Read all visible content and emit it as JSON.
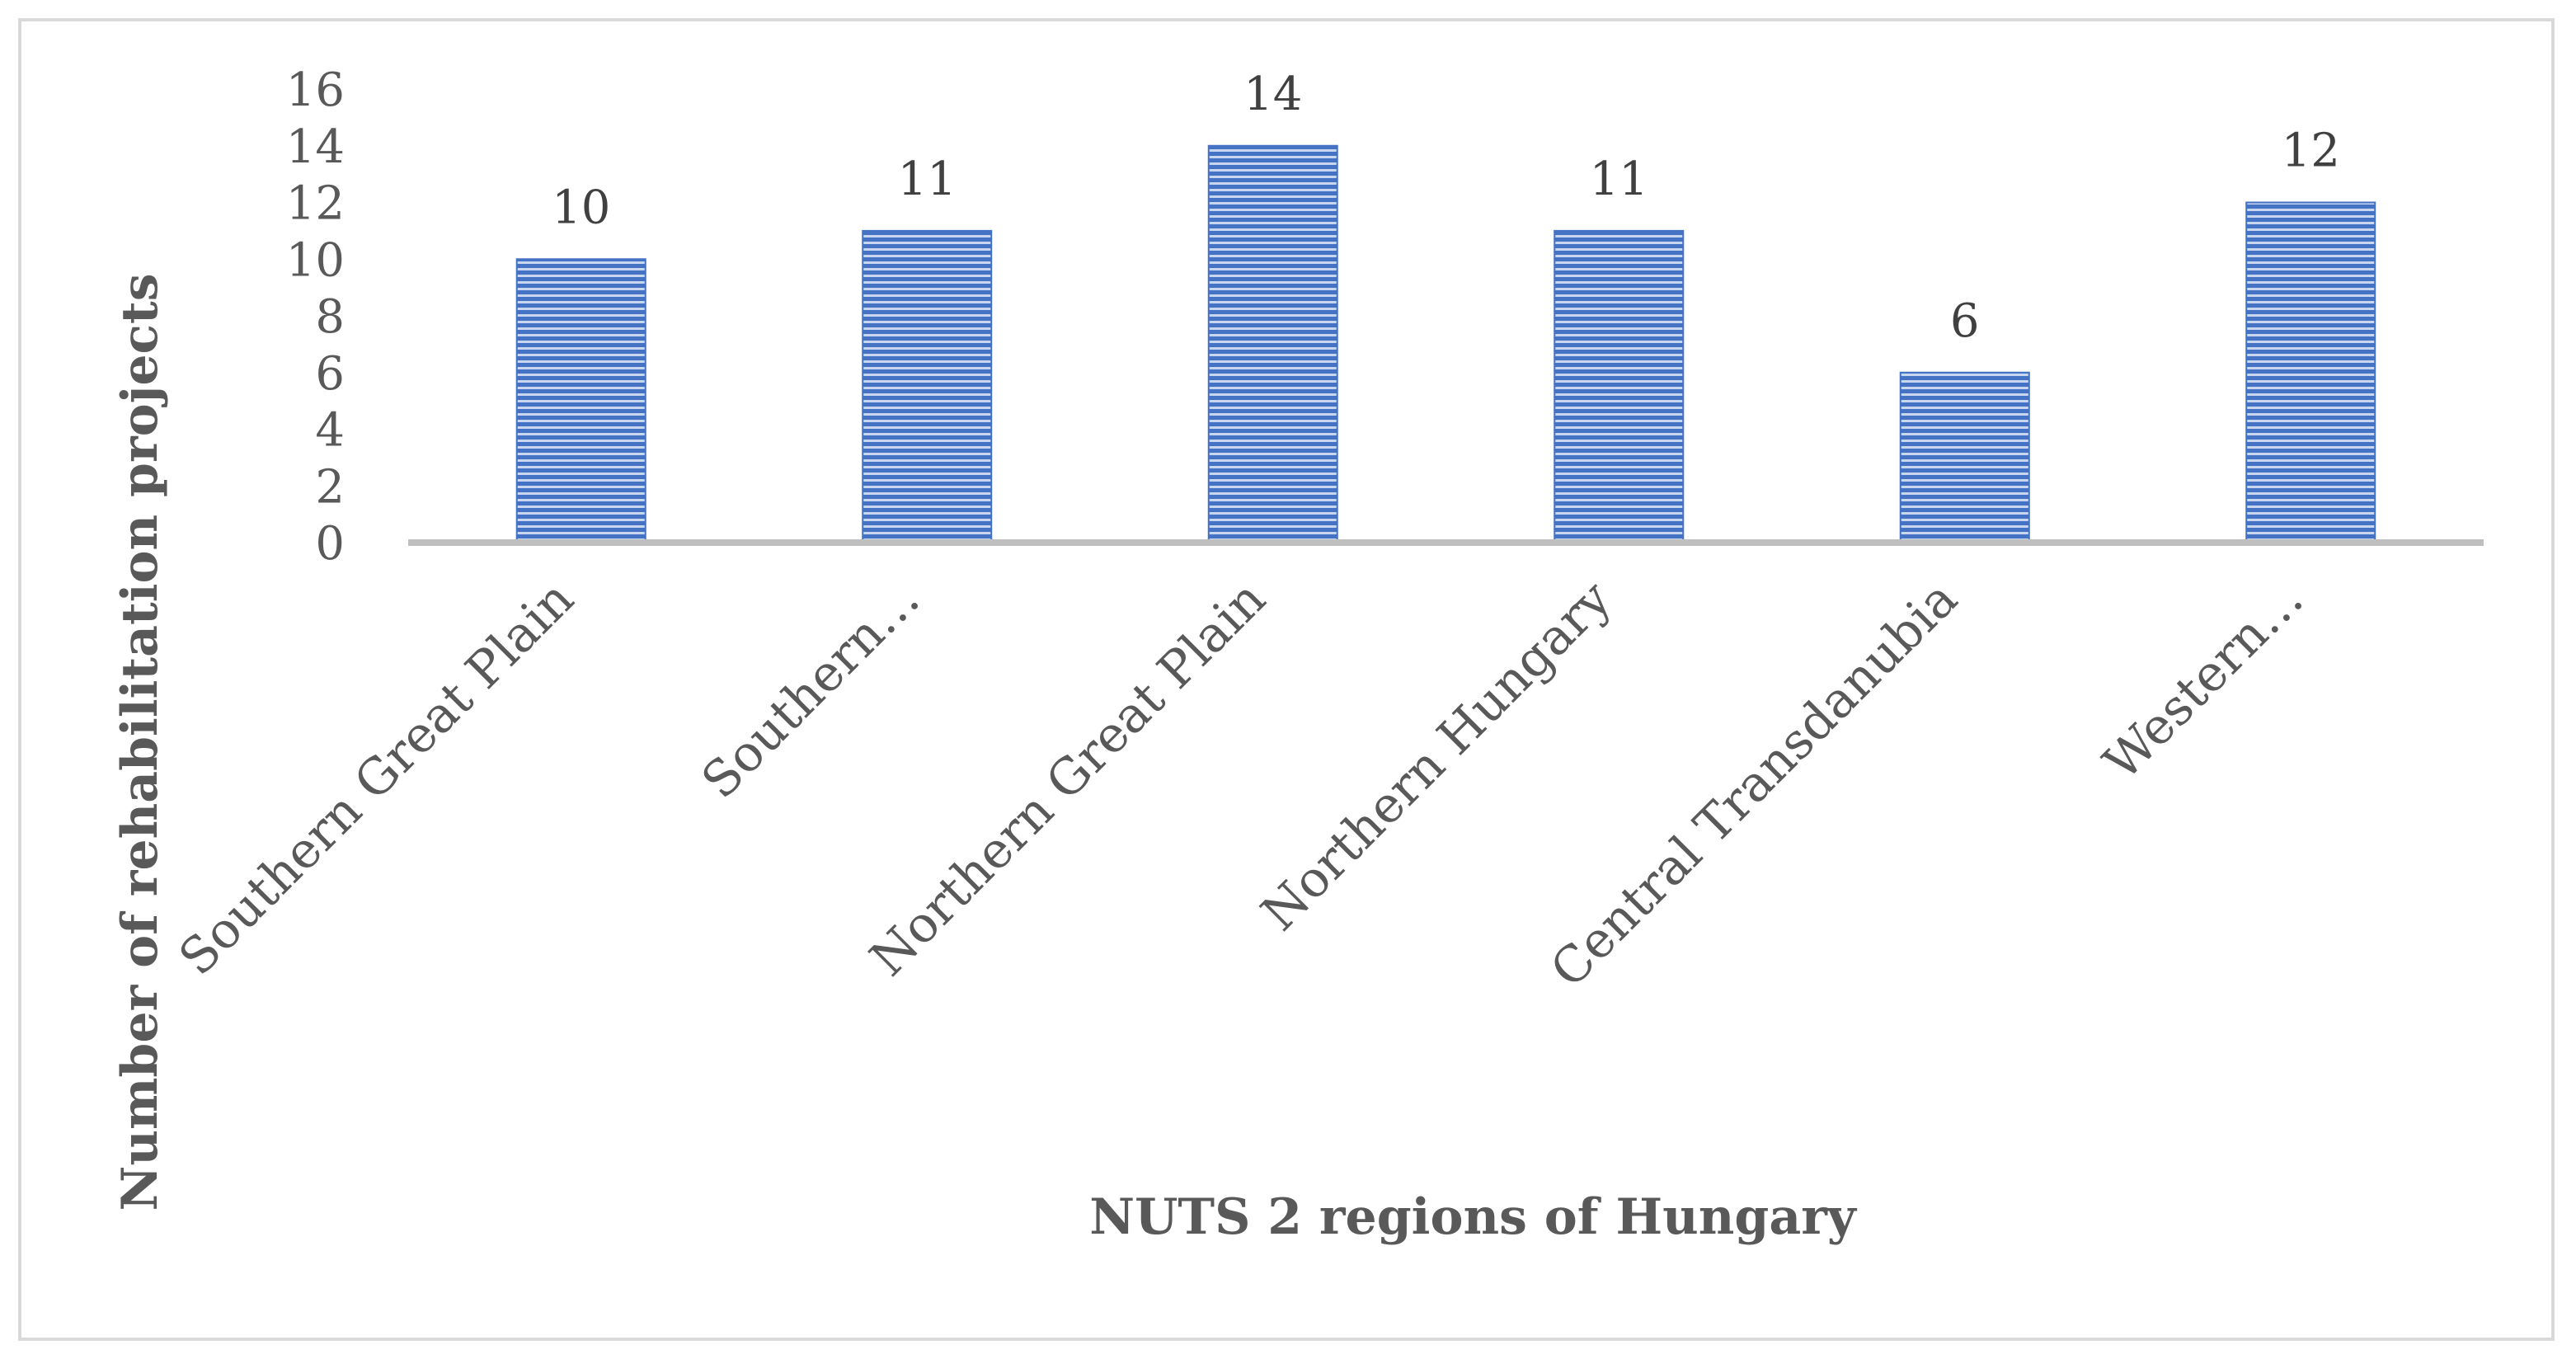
{
  "chart_data": {
    "type": "bar",
    "title": "",
    "xlabel": "NUTS 2 regions of Hungary",
    "ylabel": "Number of rehabilitation projects",
    "categories": [
      "Southern Great Plain",
      "Southern…",
      "Northern Great Plain",
      "Northern Hungary",
      "Central Transdanubia",
      "Western…"
    ],
    "values": [
      10,
      11,
      14,
      11,
      6,
      12
    ],
    "ylim": [
      0,
      16
    ],
    "yticks": [
      0,
      2,
      4,
      6,
      8,
      10,
      12,
      14,
      16
    ],
    "grid": false,
    "legend": "none",
    "data_labels": true,
    "colors": {
      "bar": "#4472c4",
      "bar_stripe": "#c9d6ef",
      "axis": "#bfbfbf",
      "text": "#595959",
      "frame": "#d9d9d9"
    }
  }
}
